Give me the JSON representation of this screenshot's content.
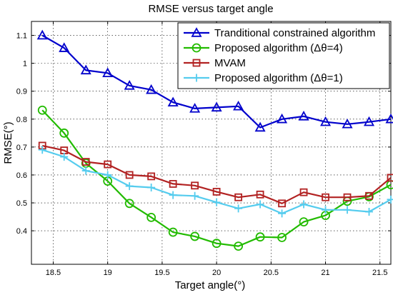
{
  "chart_data": {
    "type": "line",
    "title": "RMSE versus target angle",
    "xlabel": "Target angle(°)",
    "ylabel": "RMSE(°)",
    "xlim": [
      18.3,
      21.6
    ],
    "ylim": [
      0.28,
      1.15
    ],
    "x_ticks": [
      "18.5",
      "19",
      "19.5",
      "20",
      "20.5",
      "21",
      "21.5"
    ],
    "y_ticks": [
      "0.4",
      "0.5",
      "0.6",
      "0.7",
      "0.8",
      "0.9",
      "1",
      "1.1"
    ],
    "grid": true,
    "legend_position": "top-right",
    "x": [
      18.4,
      18.6,
      18.8,
      19.0,
      19.2,
      19.4,
      19.6,
      19.8,
      20.0,
      20.2,
      20.4,
      20.6,
      20.8,
      21.0,
      21.2,
      21.4,
      21.6
    ],
    "series": [
      {
        "name": "Tranditional constrained algorithm",
        "color": "#0000cc",
        "marker": "triangle",
        "values": [
          1.1,
          1.055,
          0.975,
          0.965,
          0.92,
          0.905,
          0.86,
          0.838,
          0.842,
          0.846,
          0.77,
          0.8,
          0.81,
          0.79,
          0.782,
          0.79,
          0.8
        ]
      },
      {
        "name": "Proposed algorithm (Δθ=4)",
        "color": "#22bb00",
        "marker": "circle",
        "values": [
          0.832,
          0.75,
          0.642,
          0.578,
          0.498,
          0.448,
          0.395,
          0.38,
          0.355,
          0.345,
          0.378,
          0.376,
          0.432,
          0.455,
          0.506,
          0.522,
          0.565
        ]
      },
      {
        "name": "MVAM",
        "color": "#b22222",
        "marker": "square",
        "values": [
          0.705,
          0.688,
          0.647,
          0.638,
          0.6,
          0.595,
          0.568,
          0.562,
          0.54,
          0.52,
          0.53,
          0.498,
          0.538,
          0.52,
          0.52,
          0.525,
          0.59
        ]
      },
      {
        "name": "Proposed algorithm (Δθ=1)",
        "color": "#55ccee",
        "marker": "plus",
        "values": [
          0.69,
          0.665,
          0.615,
          0.6,
          0.56,
          0.555,
          0.528,
          0.525,
          0.502,
          0.48,
          0.495,
          0.462,
          0.495,
          0.475,
          0.475,
          0.468,
          0.512
        ]
      }
    ]
  }
}
